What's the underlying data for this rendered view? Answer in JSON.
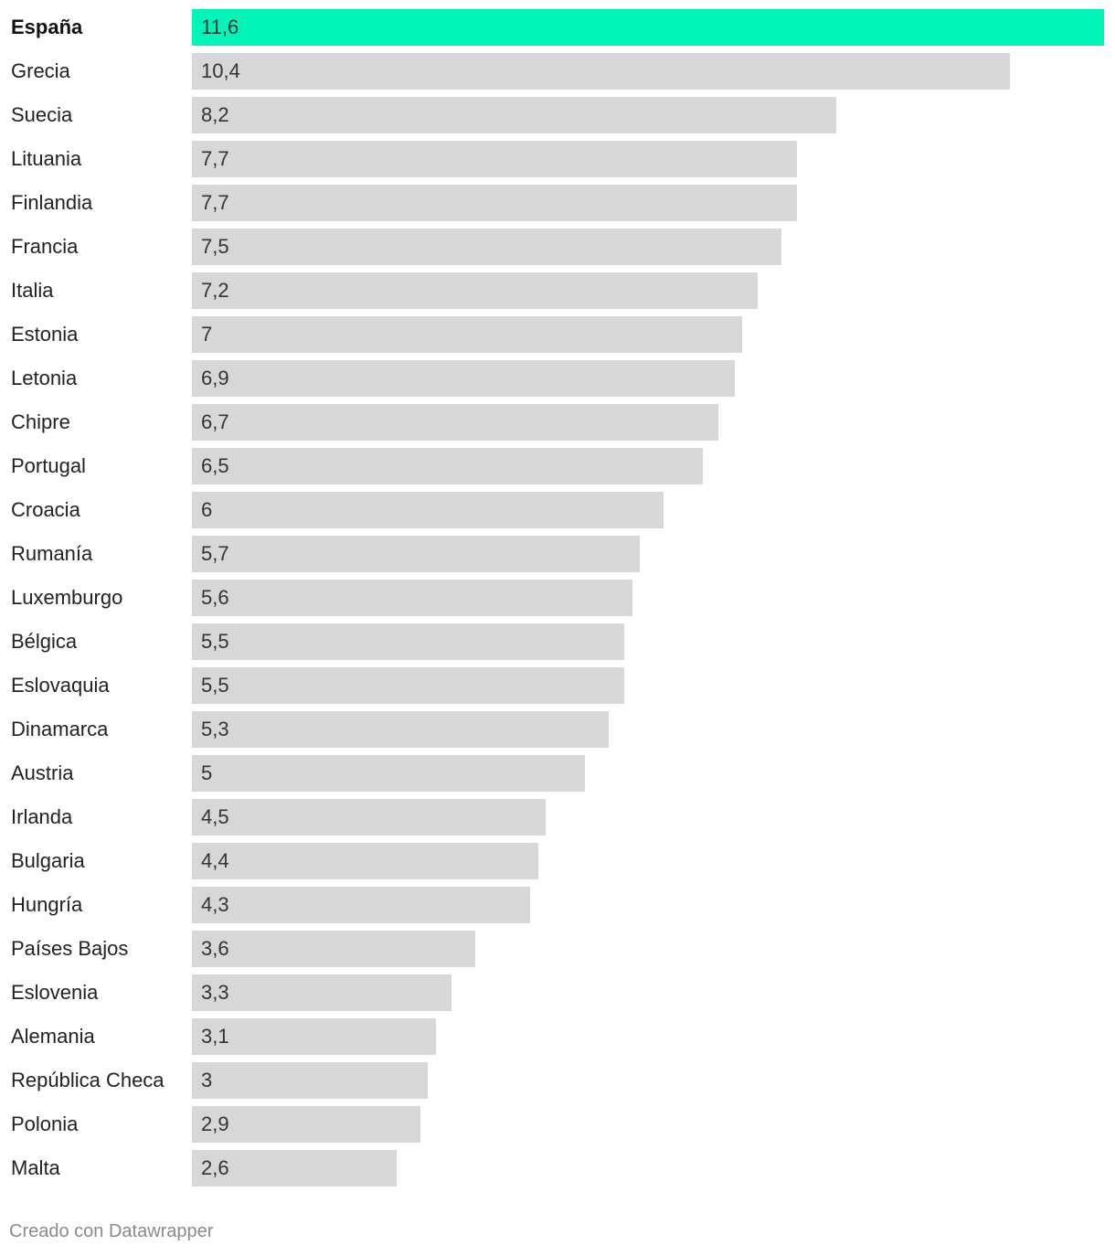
{
  "chart_data": {
    "type": "bar",
    "orientation": "horizontal",
    "categories": [
      "España",
      "Grecia",
      "Suecia",
      "Lituania",
      "Finlandia",
      "Francia",
      "Italia",
      "Estonia",
      "Letonia",
      "Chipre",
      "Portugal",
      "Croacia",
      "Rumanía",
      "Luxemburgo",
      "Bélgica",
      "Eslovaquia",
      "Dinamarca",
      "Austria",
      "Irlanda",
      "Bulgaria",
      "Hungría",
      "Países Bajos",
      "Eslovenia",
      "Alemania",
      "República Checa",
      "Polonia",
      "Malta"
    ],
    "values": [
      11.6,
      10.4,
      8.2,
      7.7,
      7.7,
      7.5,
      7.2,
      7.0,
      6.9,
      6.7,
      6.5,
      6.0,
      5.7,
      5.6,
      5.5,
      5.5,
      5.3,
      5.0,
      4.5,
      4.4,
      4.3,
      3.6,
      3.3,
      3.1,
      3.0,
      2.9,
      2.6
    ],
    "value_labels": [
      "11,6",
      "10,4",
      "8,2",
      "7,7",
      "7,7",
      "7,5",
      "7,2",
      "7",
      "6,9",
      "6,7",
      "6,5",
      "6",
      "5,7",
      "5,6",
      "5,5",
      "5,5",
      "5,3",
      "5",
      "4,5",
      "4,4",
      "4,3",
      "3,6",
      "3,3",
      "3,1",
      "3",
      "2,9",
      "2,6"
    ],
    "highlight": "España",
    "highlight_color": "#00f5b8",
    "bar_color": "#d7d7d7",
    "xlim": [
      0,
      11.6
    ],
    "grid": false,
    "legend": "none"
  },
  "footer": {
    "credit": "Creado con Datawrapper"
  }
}
